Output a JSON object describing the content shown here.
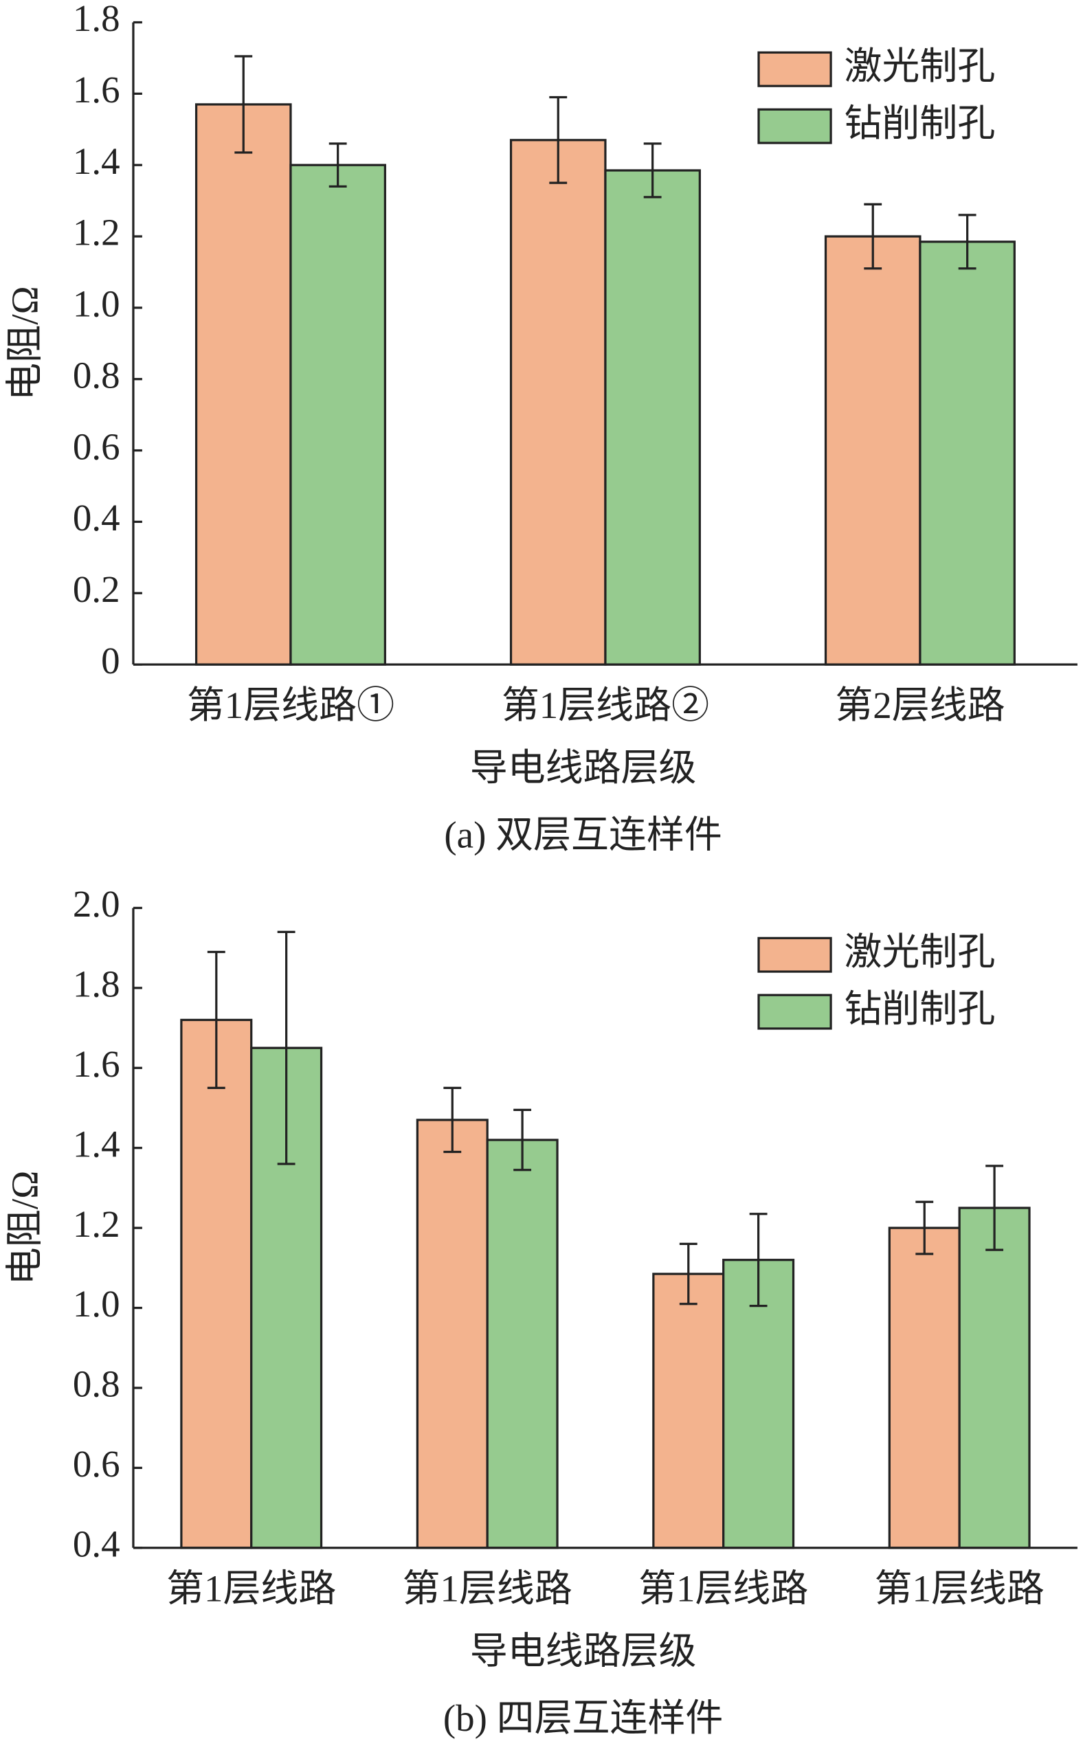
{
  "chart_data": [
    {
      "type": "bar",
      "title": "(a)  双层互连样件",
      "x_label": "导电线路层级",
      "y_label": "电阻/Ω",
      "categories": [
        "第1层线路①",
        "第1层线路②",
        "第2层线路"
      ],
      "series": [
        {
          "name": "激光制孔",
          "color": "#f3b38e",
          "values": [
            1.57,
            1.47,
            1.2
          ],
          "errors": [
            0.135,
            0.12,
            0.09
          ]
        },
        {
          "name": "钻削制孔",
          "color": "#96cb8f",
          "values": [
            1.4,
            1.385,
            1.185
          ],
          "errors": [
            0.06,
            0.075,
            0.075
          ]
        }
      ],
      "ylim": [
        0,
        1.8
      ],
      "yticks": [
        0,
        0.2,
        0.4,
        0.6,
        0.8,
        {
          "value": 1,
          "label": "1.0"
        },
        1.2,
        1.4,
        1.6,
        1.8
      ],
      "legend": "upper right"
    },
    {
      "type": "bar",
      "title": "(b)  四层互连样件",
      "x_label": "导电线路层级",
      "y_label": "电阻/Ω",
      "categories": [
        "第1层线路",
        "第1层线路",
        "第1层线路",
        "第1层线路"
      ],
      "series": [
        {
          "name": "激光制孔",
          "color": "#f3b38e",
          "values": [
            1.72,
            1.47,
            1.085,
            1.2
          ],
          "errors": [
            0.17,
            0.08,
            0.075,
            0.065
          ]
        },
        {
          "name": "钻削制孔",
          "color": "#96cb8f",
          "values": [
            1.65,
            1.42,
            1.12,
            1.25
          ],
          "errors": [
            0.29,
            0.075,
            0.115,
            0.105
          ]
        }
      ],
      "ylim": [
        0.4,
        2
      ],
      "yticks": [
        0.4,
        0.6,
        0.8,
        {
          "value": 1,
          "label": "1.0"
        },
        1.2,
        1.4,
        1.6,
        1.8,
        {
          "value": 2,
          "label": "2.0"
        }
      ],
      "legend": "upper right"
    }
  ]
}
